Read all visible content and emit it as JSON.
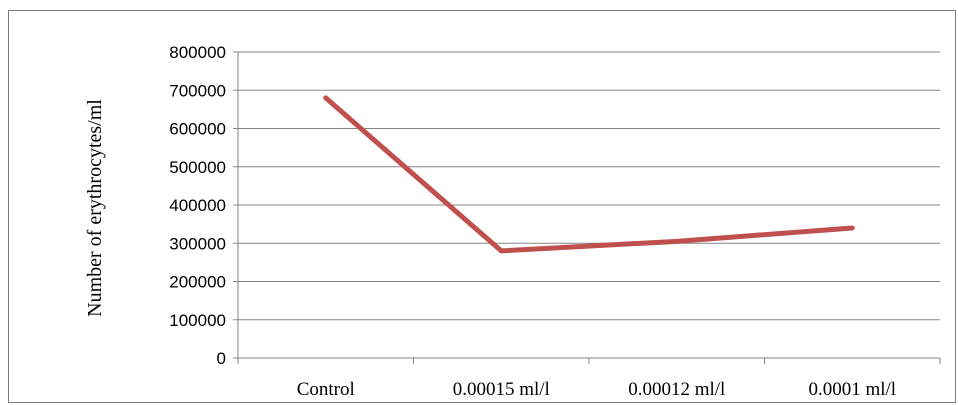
{
  "chart_data": {
    "type": "line",
    "title": "",
    "xlabel": "",
    "ylabel": "Number of erythrocytes/ml",
    "categories": [
      "Control",
      "0.00015 ml/l",
      "0.00012 ml/l",
      "0.0001 ml/l"
    ],
    "series": [
      {
        "values": [
          680000,
          280000,
          305000,
          340000
        ],
        "color": "#c0504d"
      }
    ],
    "ylim": [
      0,
      800000
    ],
    "yticks": [
      "0",
      "100000",
      "200000",
      "300000",
      "400000",
      "500000",
      "600000",
      "700000",
      "800000"
    ],
    "grid": true,
    "legend": "none"
  }
}
